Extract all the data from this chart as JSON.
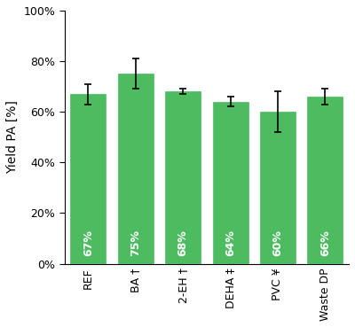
{
  "categories": [
    "REF",
    "BA †",
    "2-EH †",
    "DEHA ‡",
    "PVC ¥",
    "Waste DP"
  ],
  "values": [
    67,
    75,
    68,
    64,
    60,
    66
  ],
  "errors": [
    4,
    6,
    1,
    2,
    8,
    3
  ],
  "bar_color": "#4dbb5f",
  "bar_edgecolor": "#4dbb5f",
  "ylabel": "Yield PA [%]",
  "ylim": [
    0,
    100
  ],
  "yticks": [
    0,
    20,
    40,
    60,
    80,
    100
  ],
  "yticklabels": [
    "0%",
    "20%",
    "40%",
    "60%",
    "80%",
    "100%"
  ],
  "label_color": "white",
  "label_fontsize": 9,
  "ylabel_fontsize": 10,
  "tick_fontsize": 9,
  "xtick_fontsize": 9,
  "background_color": "#ffffff",
  "error_capsize": 3,
  "error_color": "black",
  "error_linewidth": 1.2
}
